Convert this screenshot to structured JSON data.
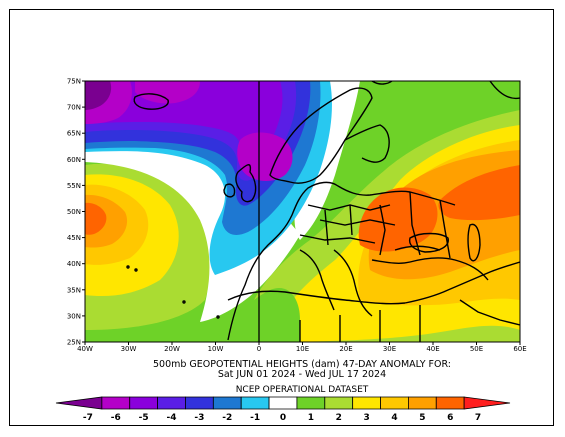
{
  "map": {
    "lat_ticks": [
      "75N",
      "70N",
      "65N",
      "60N",
      "55N",
      "50N",
      "45N",
      "40N",
      "35N",
      "30N",
      "25N"
    ],
    "lon_ticks": [
      "40W",
      "30W",
      "20W",
      "10W",
      "0",
      "10E",
      "20E",
      "30E",
      "40E",
      "50E",
      "60E"
    ],
    "title_line1": "500mb GEOPOTENTIAL HEIGHTS (dam)   47-DAY ANOMALY FOR:",
    "title_line2": "Sat JUN 01 2024 - Wed JUL 17 2024",
    "dataset": "NCEP OPERATIONAL DATASET"
  },
  "legend": {
    "labels": [
      "-7",
      "-6",
      "-5",
      "-4",
      "-3",
      "-2",
      "-1",
      "0",
      "1",
      "2",
      "3",
      "4",
      "5",
      "6",
      "7"
    ],
    "colors": [
      "#7a0090",
      "#b400c8",
      "#8a00dc",
      "#5a1ee6",
      "#3232dc",
      "#1e78d2",
      "#28c8f0",
      "#ffffff",
      "#6ed228",
      "#aadc32",
      "#ffe600",
      "#ffc800",
      "#ffa000",
      "#ff6400",
      "#ff1e1e"
    ]
  }
}
